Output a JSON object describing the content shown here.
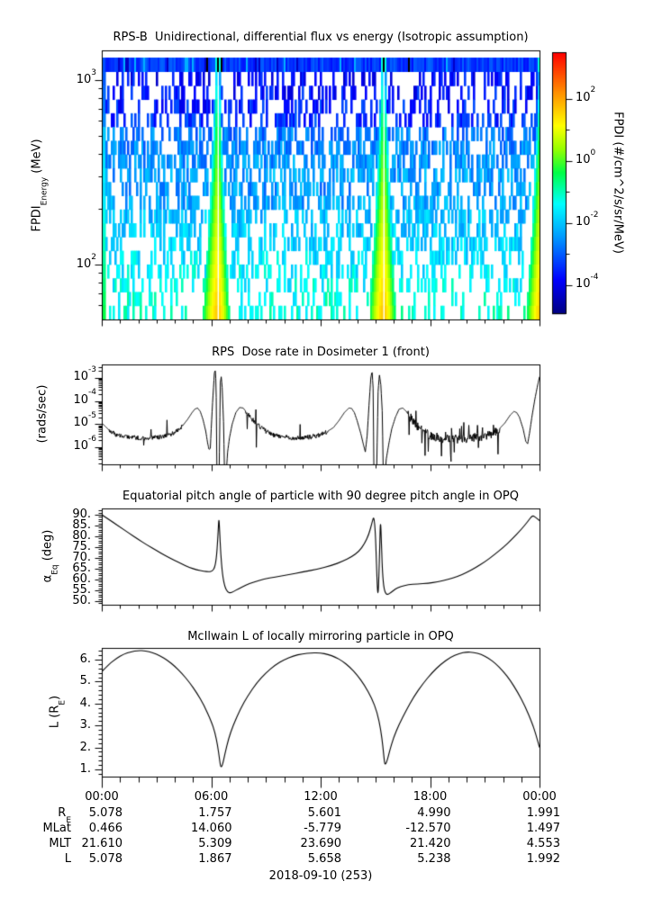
{
  "figure": {
    "exp_base": "10",
    "date_label": "2018-09-10 (253)",
    "time_ticks": [
      "00:00",
      "06:00",
      "12:00",
      "18:00",
      "00:00"
    ],
    "table_rows": [
      {
        "label": "R",
        "sub": "E",
        "values": [
          "5.078",
          "1.757",
          "5.601",
          "4.990",
          "1.991"
        ]
      },
      {
        "label": "MLat",
        "sub": "",
        "values": [
          "0.466",
          "14.060",
          "-5.779",
          "-12.570",
          "1.497"
        ]
      },
      {
        "label": "MLT",
        "sub": "",
        "values": [
          "21.610",
          "5.309",
          "23.690",
          "21.420",
          "4.553"
        ]
      },
      {
        "label": "L",
        "sub": "",
        "values": [
          "5.078",
          "1.867",
          "5.658",
          "5.238",
          "1.992"
        ]
      }
    ]
  },
  "chart_data": [
    {
      "type": "heatmap",
      "title": "RPS-B  Unidirectional, differential flux vs energy (Isotropic assumption)",
      "ylabel": {
        "pre": "FPDI",
        "sub": "Energy",
        "post": " (MeV)"
      },
      "x_range_hours": [
        0,
        24
      ],
      "energy_range_mev": [
        51,
        1450
      ],
      "y_tick_exponents": [
        3,
        2
      ],
      "flux_log_range": [
        -5,
        3.4
      ],
      "colorbar": {
        "label": "FPDI (#/cm^2/s/sr/MeV)",
        "tick_exponents": [
          2,
          0,
          -2,
          -4
        ],
        "minor_exponents": [
          1,
          -1,
          -3
        ],
        "log_range_top": 3.5,
        "log_range_bottom": -4.9
      },
      "plumes": [
        {
          "center_h": 6.37,
          "gap_h": 6.37,
          "wl": 1.15,
          "wr": 0.85
        },
        {
          "center_h": 15.45,
          "gap_h": 15.45,
          "wl": 1.1,
          "wr": 0.9
        },
        {
          "center_h": 24.08,
          "gap_h": null,
          "wl": 1.1,
          "wr": 1.0
        }
      ],
      "row_fill_profile": [
        0.3,
        0.32,
        0.36,
        0.42,
        0.5,
        0.62,
        0.58,
        0.5,
        0.48,
        0.5,
        0.52,
        0.48,
        0.44,
        0.42,
        0.38,
        0.35,
        0.32,
        0.3
      ],
      "seed": 20180910
    },
    {
      "type": "line",
      "title": "RPS  Dose rate in Dosimeter 1 (front)",
      "ylabel": {
        "pre": "(rads/sec)",
        "sub": "",
        "post": ""
      },
      "yscale": "log",
      "y_tick_exponents": [
        -3,
        -4,
        -5,
        -6
      ],
      "ylim_log10": [
        -6.74,
        -2.42
      ],
      "keypoints_log10": [
        [
          0,
          -4.95
        ],
        [
          0.2,
          -5.1
        ],
        [
          0.45,
          -5.3
        ],
        [
          0.7,
          -5.42
        ],
        [
          1.0,
          -5.5
        ],
        [
          1.5,
          -5.55
        ],
        [
          2,
          -5.6
        ],
        [
          2.5,
          -5.6
        ],
        [
          3,
          -5.58
        ],
        [
          3.5,
          -5.5
        ],
        [
          3.8,
          -5.42
        ],
        [
          4.1,
          -5.3
        ],
        [
          4.4,
          -5.1
        ],
        [
          4.7,
          -4.8
        ],
        [
          4.95,
          -4.5
        ],
        [
          5.1,
          -4.35
        ],
        [
          5.25,
          -4.3
        ],
        [
          5.4,
          -4.45
        ],
        [
          5.55,
          -4.8
        ],
        [
          5.7,
          -5.3
        ],
        [
          5.8,
          -5.8
        ],
        [
          5.88,
          -6.1
        ],
        [
          5.95,
          -6.05
        ],
        [
          6.0,
          -5.2
        ],
        [
          6.08,
          -4.0
        ],
        [
          6.18,
          -2.72
        ],
        [
          6.24,
          -2.68
        ],
        [
          6.28,
          -4.0
        ],
        [
          6.32,
          -8
        ],
        [
          6.42,
          -8
        ],
        [
          6.5,
          -3.2
        ],
        [
          6.55,
          -2.95
        ],
        [
          6.6,
          -3.4
        ],
        [
          6.68,
          -5.0
        ],
        [
          6.75,
          -8
        ],
        [
          6.9,
          -6.2
        ],
        [
          7.0,
          -5.6
        ],
        [
          7.15,
          -5.0
        ],
        [
          7.35,
          -4.5
        ],
        [
          7.55,
          -4.28
        ],
        [
          7.75,
          -4.3
        ],
        [
          7.95,
          -4.5
        ],
        [
          8.2,
          -4.75
        ],
        [
          8.5,
          -5.0
        ],
        [
          8.9,
          -5.25
        ],
        [
          9.3,
          -5.45
        ],
        [
          9.8,
          -5.55
        ],
        [
          10.5,
          -5.6
        ],
        [
          11.2,
          -5.58
        ],
        [
          11.8,
          -5.5
        ],
        [
          12.3,
          -5.35
        ],
        [
          12.7,
          -5.15
        ],
        [
          13.0,
          -4.85
        ],
        [
          13.3,
          -4.5
        ],
        [
          13.55,
          -4.3
        ],
        [
          13.7,
          -4.32
        ],
        [
          13.85,
          -4.5
        ],
        [
          14.0,
          -4.85
        ],
        [
          14.2,
          -5.4
        ],
        [
          14.35,
          -5.9
        ],
        [
          14.45,
          -6.2
        ],
        [
          14.55,
          -5.5
        ],
        [
          14.65,
          -4.2
        ],
        [
          14.75,
          -3.0
        ],
        [
          14.82,
          -2.7
        ],
        [
          14.88,
          -3.5
        ],
        [
          14.93,
          -8
        ],
        [
          15.05,
          -8
        ],
        [
          15.15,
          -3.6
        ],
        [
          15.22,
          -2.85
        ],
        [
          15.3,
          -3.3
        ],
        [
          15.38,
          -4.5
        ],
        [
          15.45,
          -8
        ],
        [
          15.6,
          -6.5
        ],
        [
          15.75,
          -5.8
        ],
        [
          15.9,
          -5.2
        ],
        [
          16.1,
          -4.7
        ],
        [
          16.3,
          -4.35
        ],
        [
          16.5,
          -4.3
        ],
        [
          16.7,
          -4.45
        ],
        [
          16.95,
          -4.75
        ],
        [
          17.25,
          -5.05
        ],
        [
          17.6,
          -5.3
        ],
        [
          18,
          -5.5
        ],
        [
          18.5,
          -5.6
        ],
        [
          19,
          -5.65
        ],
        [
          19.5,
          -5.65
        ],
        [
          20,
          -5.62
        ],
        [
          20.5,
          -5.58
        ],
        [
          21,
          -5.5
        ],
        [
          21.4,
          -5.4
        ],
        [
          21.8,
          -5.2
        ],
        [
          22.1,
          -4.95
        ],
        [
          22.4,
          -4.6
        ],
        [
          22.6,
          -4.45
        ],
        [
          22.75,
          -4.5
        ],
        [
          22.9,
          -4.7
        ],
        [
          23.1,
          -5.2
        ],
        [
          23.25,
          -5.75
        ],
        [
          23.35,
          -5.85
        ],
        [
          23.45,
          -5.4
        ],
        [
          23.6,
          -4.6
        ],
        [
          23.75,
          -3.9
        ],
        [
          23.9,
          -3.3
        ],
        [
          24,
          -2.95
        ]
      ],
      "noise_zones": [
        {
          "t0": 0.4,
          "t1": 4.4,
          "amp": 0.1,
          "spike": 0.03
        },
        {
          "t0": 7.9,
          "t1": 12.4,
          "amp": 0.1,
          "spike": 0.03
        },
        {
          "t0": 16.8,
          "t1": 21.8,
          "amp": 0.2,
          "spike": 0.06
        }
      ]
    },
    {
      "type": "line",
      "title": "Equatorial pitch angle of particle with 90 degree pitch angle in OPQ",
      "ylabel": {
        "pre": "α",
        "sub": "Eq",
        "post": " (deg)"
      },
      "ylim": [
        48.3,
        92.9
      ],
      "y_ticks": [
        {
          "v": 90,
          "label": "90."
        },
        {
          "v": 85,
          "label": "85."
        },
        {
          "v": 80,
          "label": "80."
        },
        {
          "v": 75,
          "label": "75."
        },
        {
          "v": 70,
          "label": "70."
        },
        {
          "v": 65,
          "label": "65."
        },
        {
          "v": 60,
          "label": "60."
        },
        {
          "v": 55,
          "label": "55."
        },
        {
          "v": 50,
          "label": "50."
        }
      ],
      "minor_step": 1,
      "keypoints": [
        [
          0,
          90
        ],
        [
          0.5,
          87.2
        ],
        [
          1,
          84.3
        ],
        [
          1.5,
          81.4
        ],
        [
          2,
          78.6
        ],
        [
          2.5,
          75.9
        ],
        [
          3,
          73.4
        ],
        [
          3.5,
          71
        ],
        [
          4,
          68.8
        ],
        [
          4.4,
          67.2
        ],
        [
          4.8,
          65.6
        ],
        [
          5.2,
          64.5
        ],
        [
          5.6,
          63.8
        ],
        [
          5.9,
          63.6
        ],
        [
          6.05,
          63.9
        ],
        [
          6.2,
          65.5
        ],
        [
          6.3,
          71
        ],
        [
          6.38,
          82
        ],
        [
          6.42,
          89
        ],
        [
          6.46,
          83
        ],
        [
          6.52,
          72
        ],
        [
          6.62,
          62
        ],
        [
          6.75,
          56.5
        ],
        [
          6.9,
          54.2
        ],
        [
          7.05,
          53.8
        ],
        [
          7.2,
          54.3
        ],
        [
          7.5,
          55.8
        ],
        [
          7.9,
          57.4
        ],
        [
          8.3,
          58.8
        ],
        [
          8.9,
          60.2
        ],
        [
          9.5,
          61.2
        ],
        [
          10.2,
          62.2
        ],
        [
          11,
          63.4
        ],
        [
          11.8,
          64.8
        ],
        [
          12.6,
          66.5
        ],
        [
          13.2,
          68.4
        ],
        [
          13.7,
          70.5
        ],
        [
          14.1,
          73
        ],
        [
          14.4,
          76.5
        ],
        [
          14.65,
          81
        ],
        [
          14.82,
          86.5
        ],
        [
          14.92,
          89.5
        ],
        [
          15.0,
          82
        ],
        [
          15.05,
          70
        ],
        [
          15.1,
          58
        ],
        [
          15.14,
          52.5
        ],
        [
          15.18,
          58
        ],
        [
          15.24,
          75
        ],
        [
          15.28,
          88.5
        ],
        [
          15.33,
          78
        ],
        [
          15.38,
          65
        ],
        [
          15.45,
          57
        ],
        [
          15.55,
          53.5
        ],
        [
          15.68,
          53
        ],
        [
          15.85,
          54
        ],
        [
          16.1,
          55.6
        ],
        [
          16.4,
          56.8
        ],
        [
          16.8,
          57.6
        ],
        [
          17.3,
          58
        ],
        [
          17.9,
          58.3
        ],
        [
          18.4,
          58.9
        ],
        [
          19,
          60
        ],
        [
          19.5,
          61.4
        ],
        [
          20,
          63.2
        ],
        [
          20.5,
          65.5
        ],
        [
          21,
          68.2
        ],
        [
          21.5,
          71.3
        ],
        [
          22,
          74.8
        ],
        [
          22.5,
          78.7
        ],
        [
          23,
          83.2
        ],
        [
          23.35,
          86.8
        ],
        [
          23.6,
          89.7
        ],
        [
          23.75,
          89
        ],
        [
          24,
          87.3
        ]
      ]
    },
    {
      "type": "line",
      "title": "McIlwain L of locally mirroring particle in OPQ",
      "ylabel": {
        "pre": "L (R",
        "sub": "E",
        "post": ")"
      },
      "ylim": [
        0.67,
        6.53
      ],
      "y_ticks": [
        {
          "v": 6,
          "label": "6."
        },
        {
          "v": 5,
          "label": "5."
        },
        {
          "v": 4,
          "label": "4."
        },
        {
          "v": 3,
          "label": "3."
        },
        {
          "v": 2,
          "label": "2."
        },
        {
          "v": 1,
          "label": "1."
        }
      ],
      "minor_step": 0.2,
      "keypoints": [
        [
          0,
          5.45
        ],
        [
          0.4,
          5.8
        ],
        [
          0.8,
          6.05
        ],
        [
          1.2,
          6.25
        ],
        [
          1.6,
          6.36
        ],
        [
          2,
          6.42
        ],
        [
          2.4,
          6.4
        ],
        [
          2.8,
          6.32
        ],
        [
          3.2,
          6.17
        ],
        [
          3.6,
          5.97
        ],
        [
          4,
          5.7
        ],
        [
          4.4,
          5.37
        ],
        [
          4.8,
          4.97
        ],
        [
          5.2,
          4.5
        ],
        [
          5.6,
          3.93
        ],
        [
          6,
          3.2
        ],
        [
          6.2,
          2.7
        ],
        [
          6.35,
          2.1
        ],
        [
          6.45,
          1.5
        ],
        [
          6.52,
          1.07
        ],
        [
          6.62,
          1.2
        ],
        [
          6.75,
          1.7
        ],
        [
          6.95,
          2.4
        ],
        [
          7.2,
          3.0
        ],
        [
          7.6,
          3.75
        ],
        [
          8,
          4.35
        ],
        [
          8.5,
          4.95
        ],
        [
          9,
          5.4
        ],
        [
          9.5,
          5.75
        ],
        [
          10,
          6.0
        ],
        [
          10.5,
          6.17
        ],
        [
          11,
          6.27
        ],
        [
          11.5,
          6.31
        ],
        [
          12,
          6.3
        ],
        [
          12.4,
          6.24
        ],
        [
          12.8,
          6.12
        ],
        [
          13.2,
          5.93
        ],
        [
          13.6,
          5.66
        ],
        [
          14,
          5.3
        ],
        [
          14.4,
          4.84
        ],
        [
          14.8,
          4.25
        ],
        [
          15.1,
          3.6
        ],
        [
          15.3,
          2.8
        ],
        [
          15.42,
          2.0
        ],
        [
          15.5,
          1.3
        ],
        [
          15.55,
          1.22
        ],
        [
          15.65,
          1.4
        ],
        [
          15.8,
          1.9
        ],
        [
          16,
          2.45
        ],
        [
          16.3,
          3.05
        ],
        [
          16.7,
          3.7
        ],
        [
          17.1,
          4.3
        ],
        [
          17.6,
          4.9
        ],
        [
          18.1,
          5.4
        ],
        [
          18.6,
          5.8
        ],
        [
          19.1,
          6.1
        ],
        [
          19.6,
          6.28
        ],
        [
          20,
          6.35
        ],
        [
          20.4,
          6.33
        ],
        [
          20.8,
          6.24
        ],
        [
          21.2,
          6.07
        ],
        [
          21.6,
          5.82
        ],
        [
          22,
          5.48
        ],
        [
          22.4,
          5.05
        ],
        [
          22.8,
          4.52
        ],
        [
          23.2,
          3.9
        ],
        [
          23.6,
          3.1
        ],
        [
          23.8,
          2.6
        ],
        [
          24,
          2.0
        ]
      ]
    }
  ]
}
